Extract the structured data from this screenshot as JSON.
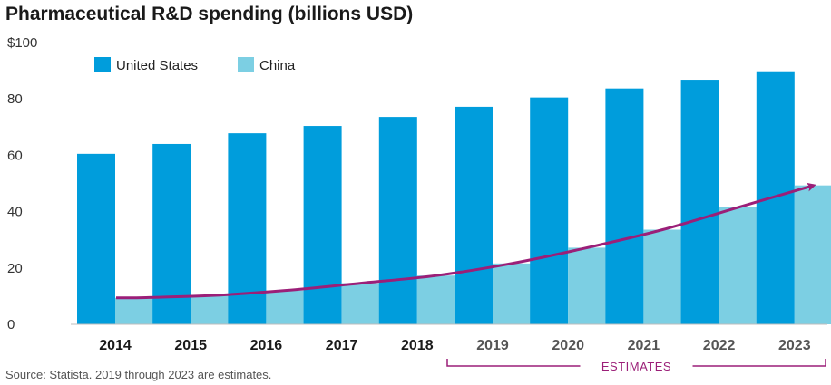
{
  "chart_data": {
    "type": "bar",
    "title": "Pharmaceutical R&D spending (billions USD)",
    "xlabel": "",
    "ylabel": "",
    "y_tick_labels": [
      "0",
      "20",
      "40",
      "60",
      "80",
      "$100"
    ],
    "ylim": [
      0,
      100
    ],
    "grid": false,
    "legend_position": "top-left",
    "categories": [
      "2014",
      "2015",
      "2016",
      "2017",
      "2018",
      "2019",
      "2020",
      "2021",
      "2022",
      "2023"
    ],
    "estimate_categories": [
      "2019",
      "2020",
      "2021",
      "2022",
      "2023"
    ],
    "series": [
      {
        "name": "United States",
        "color": "#009ddc",
        "values": [
          60.5,
          64,
          67.8,
          70.4,
          73.6,
          77.2,
          80.5,
          83.7,
          86.8,
          89.8
        ]
      },
      {
        "name": "China",
        "color": "#7ccfe3",
        "values": [
          9.4,
          10.2,
          12,
          14.6,
          17.3,
          21.6,
          27.2,
          33.6,
          41.5,
          49.3
        ]
      }
    ],
    "annotations": {
      "trend_arrow_color": "#9b1f78",
      "estimates_label": "ESTIMATES"
    },
    "source": "Source: Statista. 2019 through 2023 are estimates."
  }
}
